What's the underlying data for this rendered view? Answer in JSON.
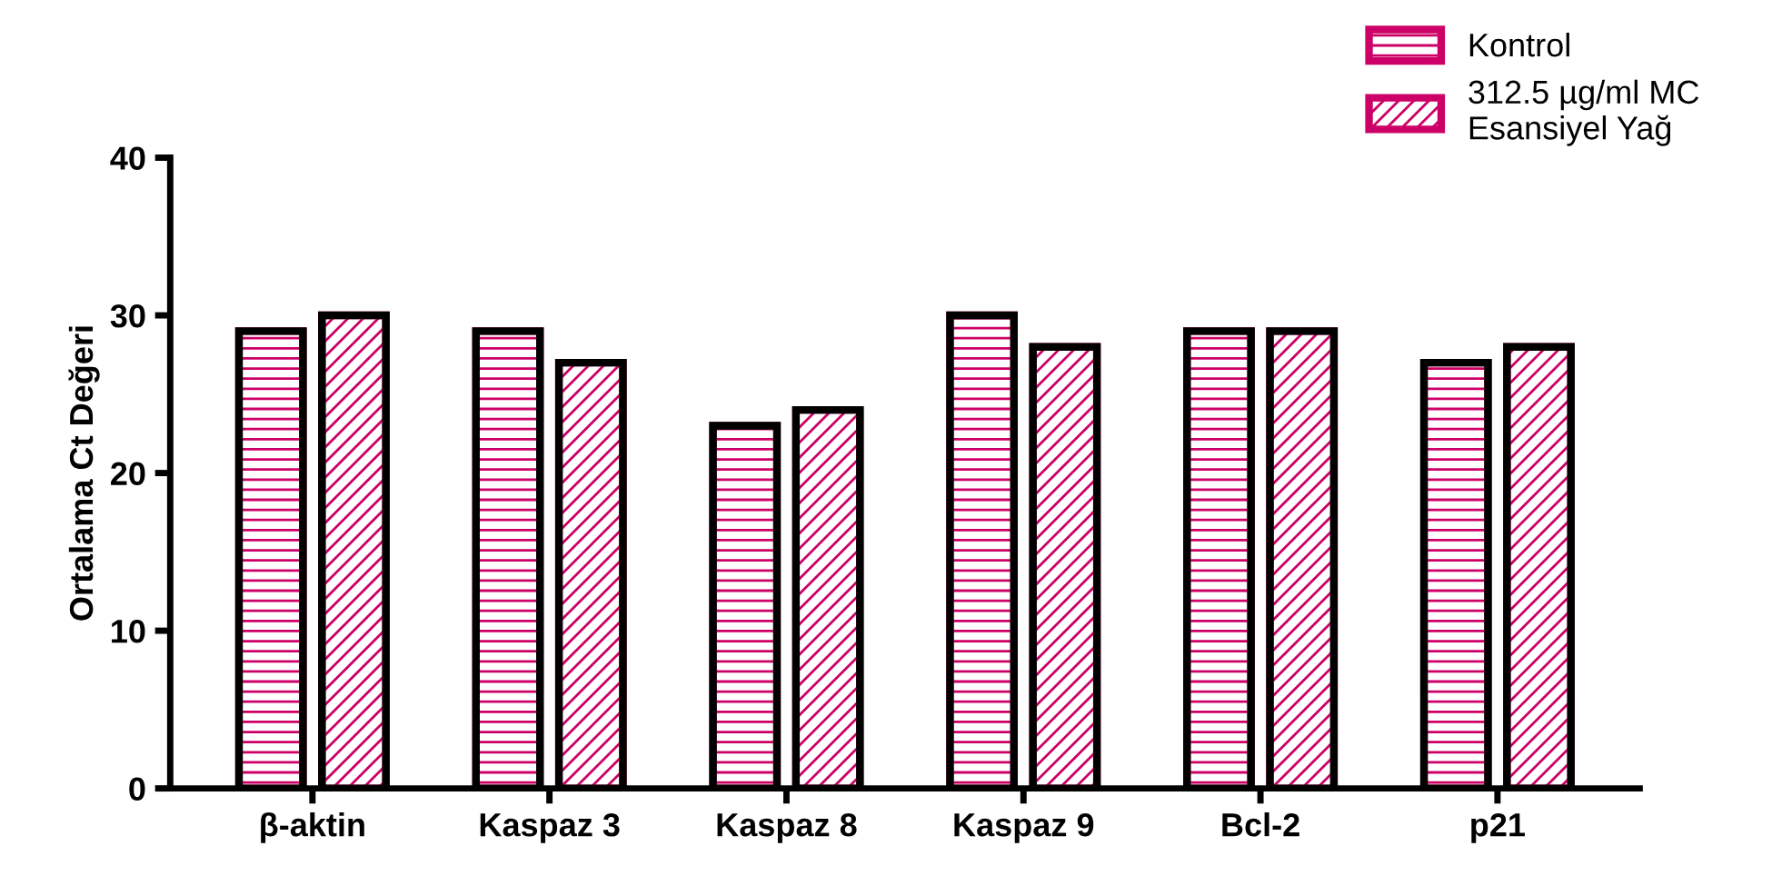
{
  "chart_data": {
    "type": "bar",
    "ylabel": "Ortalama Ct Değeri",
    "categories": [
      "β-aktin",
      "Kaspaz 3",
      "Kaspaz 8",
      "Kaspaz 9",
      "Bcl-2",
      "p21"
    ],
    "series": [
      {
        "name": "Kontrol",
        "color": "#cc0066",
        "values": [
          29,
          29,
          23,
          30,
          29,
          27
        ]
      },
      {
        "name": "312.5 µg/ml MC\nEsansiyel Yağ",
        "color": "#cc0066",
        "values": [
          30,
          27,
          24,
          28,
          29,
          28
        ]
      }
    ],
    "ylim": [
      0,
      40
    ],
    "yticks": [
      0,
      10,
      20,
      30,
      40
    ],
    "grid": false,
    "legend": "top right"
  }
}
